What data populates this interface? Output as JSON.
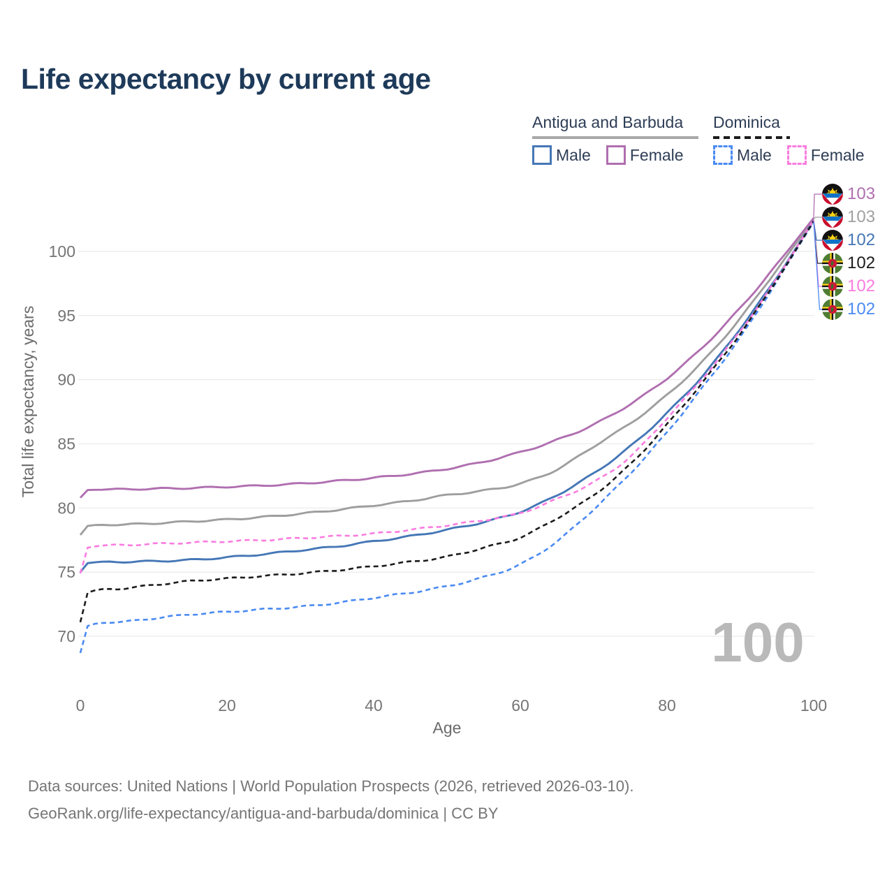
{
  "title": "Life expectancy by current age",
  "legend": {
    "groups": [
      {
        "label": "Antigua and Barbuda",
        "line_style": "solid",
        "underline_color": "#a8a8a8",
        "items": [
          {
            "label": "Male",
            "color": "#4577b6",
            "dash": false
          },
          {
            "label": "Female",
            "color": "#b06fb0",
            "dash": false
          }
        ]
      },
      {
        "label": "Dominica",
        "line_style": "dashed",
        "underline_color": "#1c1c1c",
        "items": [
          {
            "label": "Male",
            "color": "#4a8af2",
            "dash": true
          },
          {
            "label": "Female",
            "color": "#fa7ce0",
            "dash": true
          }
        ]
      }
    ]
  },
  "chart_data": {
    "type": "line",
    "title": "Life expectancy by current age",
    "xlabel": "Age",
    "ylabel": "Total life expectancy, years",
    "x_ticks": [
      0,
      20,
      40,
      60,
      80,
      100
    ],
    "y_ticks": [
      70,
      75,
      80,
      85,
      90,
      95,
      100
    ],
    "xlim": [
      0,
      100
    ],
    "ylim": [
      68,
      103.5
    ],
    "grid": "horizontal",
    "grid_color": "#eaeaea",
    "axis_text_color": "#757575",
    "series": [
      {
        "id": "antigua-all",
        "name": "Antigua and Barbuda — All",
        "color": "#9e9e9e",
        "dash": false,
        "points": [
          [
            0,
            77.9
          ],
          [
            1,
            78.6
          ],
          [
            5,
            78.7
          ],
          [
            10,
            78.8
          ],
          [
            15,
            78.95
          ],
          [
            20,
            79.1
          ],
          [
            25,
            79.3
          ],
          [
            30,
            79.55
          ],
          [
            35,
            79.85
          ],
          [
            40,
            80.2
          ],
          [
            45,
            80.55
          ],
          [
            50,
            81.0
          ],
          [
            55,
            81.35
          ],
          [
            60,
            81.9
          ],
          [
            65,
            83.0
          ],
          [
            70,
            84.8
          ],
          [
            75,
            86.6
          ],
          [
            80,
            88.8
          ],
          [
            85,
            91.5
          ],
          [
            90,
            94.8
          ],
          [
            95,
            98.6
          ],
          [
            100,
            102.5
          ]
        ]
      },
      {
        "id": "antigua-female",
        "name": "Antigua and Barbuda — Female",
        "color": "#b06fb0",
        "dash": false,
        "points": [
          [
            0,
            80.8
          ],
          [
            1,
            81.4
          ],
          [
            5,
            81.45
          ],
          [
            10,
            81.5
          ],
          [
            15,
            81.55
          ],
          [
            20,
            81.65
          ],
          [
            25,
            81.75
          ],
          [
            30,
            81.9
          ],
          [
            35,
            82.1
          ],
          [
            40,
            82.35
          ],
          [
            45,
            82.65
          ],
          [
            50,
            83.05
          ],
          [
            55,
            83.6
          ],
          [
            60,
            84.35
          ],
          [
            65,
            85.3
          ],
          [
            70,
            86.5
          ],
          [
            75,
            88.1
          ],
          [
            80,
            90.1
          ],
          [
            85,
            92.6
          ],
          [
            90,
            95.6
          ],
          [
            95,
            99.0
          ],
          [
            100,
            102.6
          ]
        ]
      },
      {
        "id": "antigua-male",
        "name": "Antigua and Barbuda — Male",
        "color": "#4577b6",
        "dash": false,
        "points": [
          [
            0,
            75.0
          ],
          [
            1,
            75.7
          ],
          [
            5,
            75.8
          ],
          [
            10,
            75.85
          ],
          [
            15,
            75.95
          ],
          [
            20,
            76.15
          ],
          [
            25,
            76.4
          ],
          [
            30,
            76.7
          ],
          [
            35,
            77.0
          ],
          [
            40,
            77.4
          ],
          [
            45,
            77.8
          ],
          [
            50,
            78.3
          ],
          [
            55,
            78.9
          ],
          [
            60,
            79.7
          ],
          [
            65,
            81.0
          ],
          [
            70,
            82.7
          ],
          [
            75,
            84.8
          ],
          [
            80,
            87.4
          ],
          [
            85,
            90.4
          ],
          [
            90,
            94.0
          ],
          [
            95,
            98.0
          ],
          [
            100,
            102.4
          ]
        ]
      },
      {
        "id": "dominica-male",
        "name": "Dominica — Male",
        "color": "#4a8af2",
        "dash": true,
        "points": [
          [
            0,
            68.7
          ],
          [
            1,
            70.8
          ],
          [
            5,
            71.1
          ],
          [
            10,
            71.4
          ],
          [
            15,
            71.7
          ],
          [
            20,
            71.9
          ],
          [
            25,
            72.1
          ],
          [
            30,
            72.3
          ],
          [
            35,
            72.6
          ],
          [
            40,
            73.0
          ],
          [
            45,
            73.4
          ],
          [
            50,
            73.9
          ],
          [
            55,
            74.6
          ],
          [
            60,
            75.6
          ],
          [
            65,
            77.4
          ],
          [
            70,
            79.9
          ],
          [
            75,
            82.7
          ],
          [
            80,
            85.9
          ],
          [
            85,
            89.5
          ],
          [
            90,
            93.3
          ],
          [
            95,
            97.7
          ],
          [
            100,
            102.3
          ]
        ]
      },
      {
        "id": "dominica-female",
        "name": "Dominica — Female",
        "color": "#fa7ce0",
        "dash": true,
        "points": [
          [
            0,
            74.9
          ],
          [
            1,
            76.9
          ],
          [
            5,
            77.1
          ],
          [
            10,
            77.2
          ],
          [
            15,
            77.3
          ],
          [
            20,
            77.4
          ],
          [
            25,
            77.5
          ],
          [
            30,
            77.65
          ],
          [
            35,
            77.8
          ],
          [
            40,
            78.0
          ],
          [
            45,
            78.3
          ],
          [
            50,
            78.65
          ],
          [
            55,
            79.05
          ],
          [
            60,
            79.6
          ],
          [
            65,
            80.7
          ],
          [
            70,
            82.0
          ],
          [
            75,
            84.0
          ],
          [
            80,
            87.0
          ],
          [
            85,
            90.2
          ],
          [
            90,
            93.8
          ],
          [
            95,
            97.9
          ],
          [
            100,
            102.45
          ]
        ]
      },
      {
        "id": "dominica-all",
        "name": "Dominica — All",
        "color": "#1c1c1c",
        "dash": true,
        "points": [
          [
            0,
            71.1
          ],
          [
            1,
            73.4
          ],
          [
            5,
            73.7
          ],
          [
            10,
            74.0
          ],
          [
            15,
            74.3
          ],
          [
            20,
            74.5
          ],
          [
            25,
            74.7
          ],
          [
            30,
            74.9
          ],
          [
            35,
            75.15
          ],
          [
            40,
            75.45
          ],
          [
            45,
            75.8
          ],
          [
            50,
            76.2
          ],
          [
            55,
            76.9
          ],
          [
            60,
            77.7
          ],
          [
            65,
            79.2
          ],
          [
            70,
            81.0
          ],
          [
            75,
            83.4
          ],
          [
            80,
            86.5
          ],
          [
            85,
            89.9
          ],
          [
            90,
            93.6
          ],
          [
            95,
            97.8
          ],
          [
            100,
            102.35
          ]
        ]
      }
    ]
  },
  "end_labels": [
    {
      "value": "103",
      "series": "antigua-female",
      "flag": "antigua-and-barbuda",
      "color": "#b06fb0"
    },
    {
      "value": "103",
      "series": "antigua-all",
      "flag": "antigua-and-barbuda",
      "color": "#a0a0a0"
    },
    {
      "value": "102",
      "series": "antigua-male",
      "flag": "antigua-and-barbuda",
      "color": "#4577b6"
    },
    {
      "value": "102",
      "series": "dominica-all",
      "flag": "dominica",
      "color": "#1c1c1c"
    },
    {
      "value": "102",
      "series": "dominica-female",
      "flag": "dominica",
      "color": "#fa7ce0"
    },
    {
      "value": "102",
      "series": "dominica-male",
      "flag": "dominica",
      "color": "#4a8af2"
    }
  ],
  "age_indicator": "100",
  "footer": {
    "line1": "Data sources: United Nations | World Population Prospects (2026, retrieved 2026-03-10).",
    "line2": "GeoRank.org/life-expectancy/antigua-and-barbuda/dominica | CC BY"
  }
}
